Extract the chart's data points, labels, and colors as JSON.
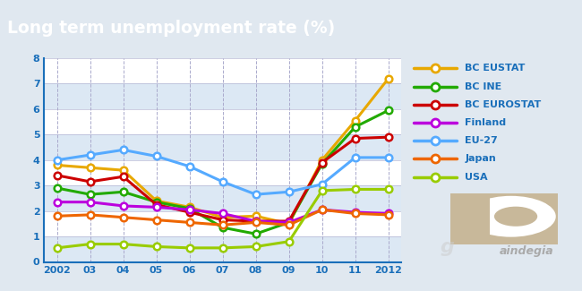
{
  "title": "Long term unemployment rate (%)",
  "title_bg": "#1a6fba",
  "title_color": "white",
  "bg_color": "#e0e8f0",
  "plot_bg_light": "#dce8f4",
  "plot_bg_dark": "#c8d8ea",
  "years": [
    2002,
    2003,
    2004,
    2005,
    2006,
    2007,
    2008,
    2009,
    2010,
    2011,
    2012
  ],
  "year_labels": [
    "2002",
    "03",
    "04",
    "05",
    "06",
    "07",
    "08",
    "09",
    "10",
    "11",
    "2012"
  ],
  "series": {
    "BC EUSTAT": {
      "color": "#e8a800",
      "values": [
        3.8,
        3.7,
        3.6,
        2.4,
        2.15,
        1.75,
        1.8,
        1.5,
        4.0,
        5.55,
        7.2
      ]
    },
    "BC INE": {
      "color": "#22aa00",
      "values": [
        2.9,
        2.65,
        2.75,
        2.35,
        2.1,
        1.35,
        1.1,
        1.55,
        3.85,
        5.3,
        5.95
      ]
    },
    "BC EUROSTAT": {
      "color": "#cc0000",
      "values": [
        3.4,
        3.15,
        3.35,
        2.25,
        1.95,
        1.65,
        1.6,
        1.6,
        3.9,
        4.85,
        4.9
      ]
    },
    "Finland": {
      "color": "#bb00dd",
      "values": [
        2.35,
        2.35,
        2.2,
        2.15,
        2.05,
        1.9,
        1.6,
        1.55,
        2.05,
        1.95,
        1.9
      ]
    },
    "EU-27": {
      "color": "#55aaff",
      "values": [
        4.0,
        4.2,
        4.4,
        4.15,
        3.75,
        3.15,
        2.65,
        2.75,
        3.05,
        4.1,
        4.1
      ]
    },
    "Japan": {
      "color": "#ee6600",
      "values": [
        1.8,
        1.85,
        1.75,
        1.65,
        1.55,
        1.45,
        1.55,
        1.45,
        2.05,
        1.9,
        1.85
      ]
    },
    "USA": {
      "color": "#99cc00",
      "values": [
        0.55,
        0.7,
        0.7,
        0.6,
        0.55,
        0.55,
        0.6,
        0.8,
        2.8,
        2.85,
        2.85
      ]
    }
  },
  "ylim": [
    0,
    8
  ],
  "yticks": [
    0,
    1,
    2,
    3,
    4,
    5,
    6,
    7,
    8
  ],
  "logo_color": "#c8b89a",
  "logo_text_color": "#aaaaaa",
  "legend_text_color": "#1a6fba",
  "axis_label_color": "#1a6fba",
  "tick_label_size": 8
}
